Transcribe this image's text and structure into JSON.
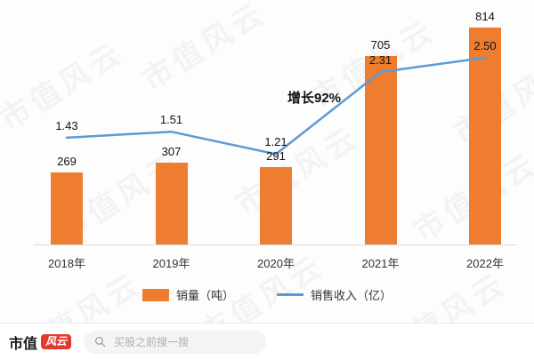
{
  "chart_data": {
    "type": "bar",
    "categories": [
      "2018年",
      "2019年",
      "2020年",
      "2021年",
      "2022年"
    ],
    "series": [
      {
        "name": "销量（吨）",
        "type": "bar",
        "color": "#ee7d30",
        "values": [
          269,
          307,
          291,
          705,
          814
        ],
        "labels": [
          "269",
          "307",
          "291",
          "705",
          "814"
        ]
      },
      {
        "name": "销售收入（亿）",
        "type": "line",
        "color": "#5b9bd5",
        "values": [
          1.43,
          1.51,
          1.21,
          2.31,
          2.5
        ],
        "labels": [
          "1.43",
          "1.51",
          "1.21",
          "2.31",
          "2.50"
        ]
      }
    ],
    "annotation": "增长92%",
    "legend_position": "bottom",
    "grid": false,
    "value_labels": true,
    "bar_axis_range_hint": [
      0,
      900
    ],
    "line_axis_range_hint": [
      0,
      3
    ]
  },
  "watermark": {
    "text": "市值风云"
  },
  "footer": {
    "brand_text": "市值",
    "brand_badge": "风云",
    "search_placeholder": "买股之前搜一搜"
  }
}
